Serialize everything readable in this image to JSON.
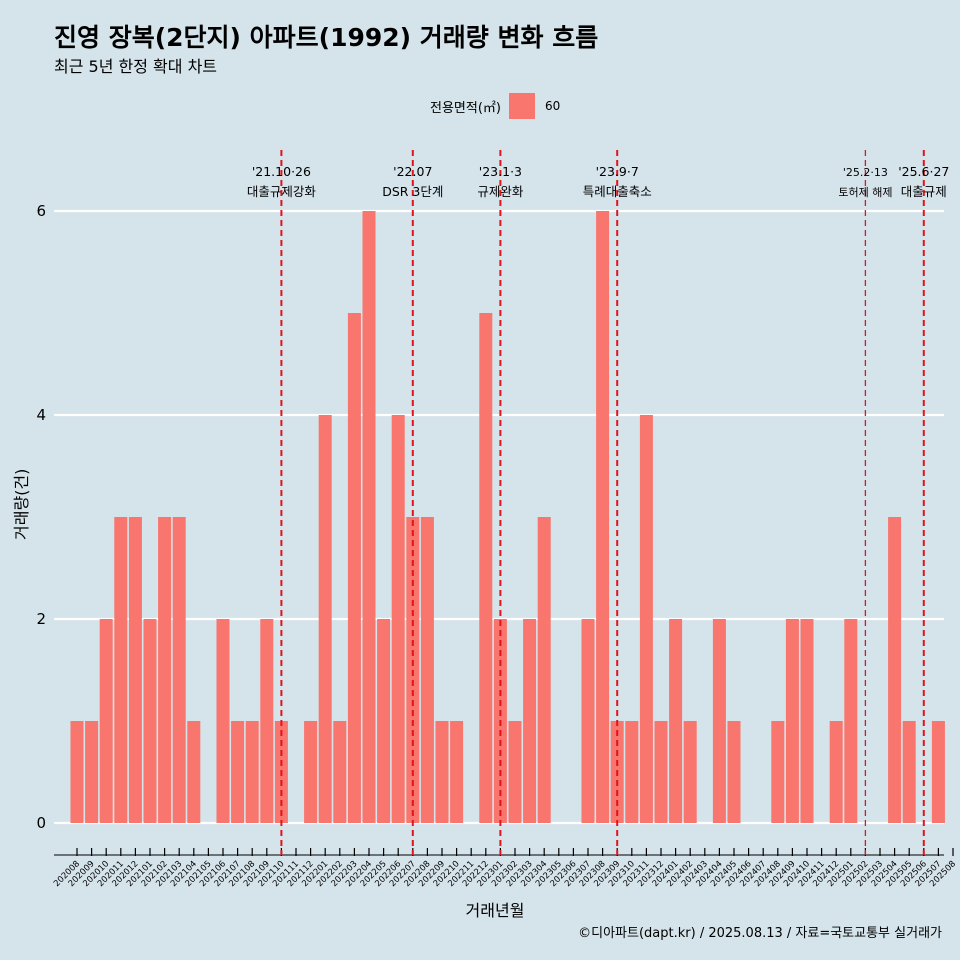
{
  "title": "진영 장복(2단지) 아파트(1992) 거래량 변화 흐름",
  "subtitle": "최근 5년 한정 확대 차트",
  "legend": {
    "title": "전용면적(㎡)",
    "label": "60",
    "color": "#f8766d"
  },
  "caption": "©디아파트(dapt.kr) / 2025.08.13 / 자료=국토교통부 실거래가",
  "chart_data": {
    "type": "bar",
    "xlabel": "거래년월",
    "ylabel": "거래량(건)",
    "ylim": [
      0,
      6
    ],
    "yticks": [
      0,
      2,
      4,
      6
    ],
    "grid": true,
    "legend_position": "top",
    "categories": [
      "202008",
      "202009",
      "202010",
      "202011",
      "202012",
      "202101",
      "202102",
      "202103",
      "202104",
      "202105",
      "202106",
      "202107",
      "202108",
      "202109",
      "202110",
      "202111",
      "202112",
      "202201",
      "202202",
      "202203",
      "202204",
      "202205",
      "202206",
      "202207",
      "202208",
      "202209",
      "202210",
      "202211",
      "202212",
      "202301",
      "202302",
      "202303",
      "202304",
      "202305",
      "202306",
      "202307",
      "202308",
      "202309",
      "202310",
      "202311",
      "202312",
      "202401",
      "202402",
      "202403",
      "202404",
      "202405",
      "202406",
      "202407",
      "202408",
      "202409",
      "202410",
      "202411",
      "202412",
      "202501",
      "202502",
      "202503",
      "202504",
      "202505",
      "202506",
      "202507",
      "202508"
    ],
    "series": [
      {
        "name": "60",
        "color": "#f8766d",
        "values": [
          1,
          1,
          2,
          3,
          3,
          2,
          3,
          3,
          1,
          0,
          2,
          1,
          1,
          2,
          1,
          0,
          1,
          4,
          1,
          5,
          6,
          2,
          4,
          3,
          3,
          1,
          1,
          0,
          5,
          2,
          1,
          2,
          3,
          0,
          0,
          2,
          6,
          1,
          1,
          4,
          1,
          2,
          1,
          0,
          2,
          1,
          0,
          0,
          1,
          2,
          2,
          0,
          1,
          2,
          0,
          0,
          3,
          1,
          0,
          1,
          0
        ]
      }
    ],
    "annotations": [
      {
        "at": "202110",
        "date": "'21.10·26",
        "label": "대출규제강화",
        "small": false
      },
      {
        "at": "202207",
        "date": "'22.07",
        "label": "DSR 3단계",
        "small": false
      },
      {
        "at": "202301",
        "date": "'23.1·3",
        "label": "규제완화",
        "small": false
      },
      {
        "at": "202309",
        "date": "'23.9·7",
        "label": "특례대출축소",
        "small": false
      },
      {
        "at": "202502",
        "date": "'25.2·13",
        "label": "토허제 해제",
        "small": true
      },
      {
        "at": "202506",
        "date": "'25.6·27",
        "label": "대출규제",
        "small": false
      }
    ]
  }
}
